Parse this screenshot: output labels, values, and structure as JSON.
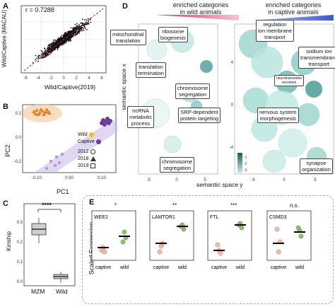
{
  "panelA": {
    "letter": "A",
    "r_label": "r = 0.7288",
    "ylabel": "Wild/Captive (MACAU)",
    "xlabel": "Wild/Captive(2019)",
    "xticks": [
      "-6",
      "-4",
      "-2",
      "0",
      "2",
      "4",
      "6"
    ],
    "yticks": [
      "-4",
      "0",
      "4",
      "8"
    ]
  },
  "panelB": {
    "letter": "B",
    "xlabel": "PC1",
    "ylabel": "PC2",
    "xticks": [
      "-0.10",
      "0.00",
      "0.10"
    ],
    "yticks": [
      "-0.2",
      "0.0",
      "0.2"
    ],
    "legend_groups": [
      {
        "label": "Wild",
        "color": "#f0c419"
      },
      {
        "label": "Captive",
        "color": "#6a3d9a"
      }
    ],
    "legend_years": [
      "2012",
      "2018",
      "2019"
    ]
  },
  "panelC": {
    "letter": "C",
    "ylabel": "Kinship",
    "significance": "****",
    "categories": [
      "MZM",
      "Wild"
    ],
    "yticks": [
      "0.0",
      "0.1",
      "0.2",
      "0.3"
    ]
  },
  "panelD": {
    "letter": "D",
    "header_wild": "enriched categories\nin wild animals",
    "header_captive": "enriched categories\nin captive animals",
    "ylabel": "semantic space x",
    "xlabel": "semantic space y",
    "left_xticks": [
      "-5",
      "0",
      "5"
    ],
    "left_yticks": [
      "-4",
      "0",
      "4"
    ],
    "right_xticks": [
      "-5",
      "0",
      "5"
    ],
    "right_yticks": [
      "-4",
      "0",
      "4"
    ],
    "left_labels": [
      "mitochondrial\ntranslation",
      "ribosome\nbiogenesis",
      "translation\ntermination",
      "chromosome\nsegregation",
      "ncRNA\nmetabolic\nprocess",
      "SRP-dependent\nprotein targeting",
      "chromosome\nsegregation"
    ],
    "right_labels": [
      "regulation\nion membrane\ntransport",
      "sodium ion\ntransmembrane\ntransport",
      "neurotransmitter\nsecretion",
      "nervous system\nmorphogenesis",
      "synapse\norganization"
    ],
    "colorbar_ticks": [
      "-1",
      "-2",
      "-3"
    ]
  },
  "panelE": {
    "letter": "E",
    "ylabel": "Scaled Expression",
    "genes": [
      {
        "name": "WEE2",
        "sig": "*"
      },
      {
        "name": "LAMTOR1",
        "sig": "**"
      },
      {
        "name": "FTL",
        "sig": "***"
      },
      {
        "name": "CSMD3",
        "sig": "n.s."
      }
    ],
    "xcats": [
      "captive",
      "wild"
    ],
    "yticks_ftl": [
      "-1.0",
      "-0.5",
      "0.0",
      "0.5"
    ],
    "yticks_csmd3": [
      "-1.5",
      "-1.0",
      "-0.5",
      "0.0",
      "0.5"
    ],
    "colors": {
      "captive": "#f4b9a8",
      "wild": "#8fbf6a"
    }
  }
}
